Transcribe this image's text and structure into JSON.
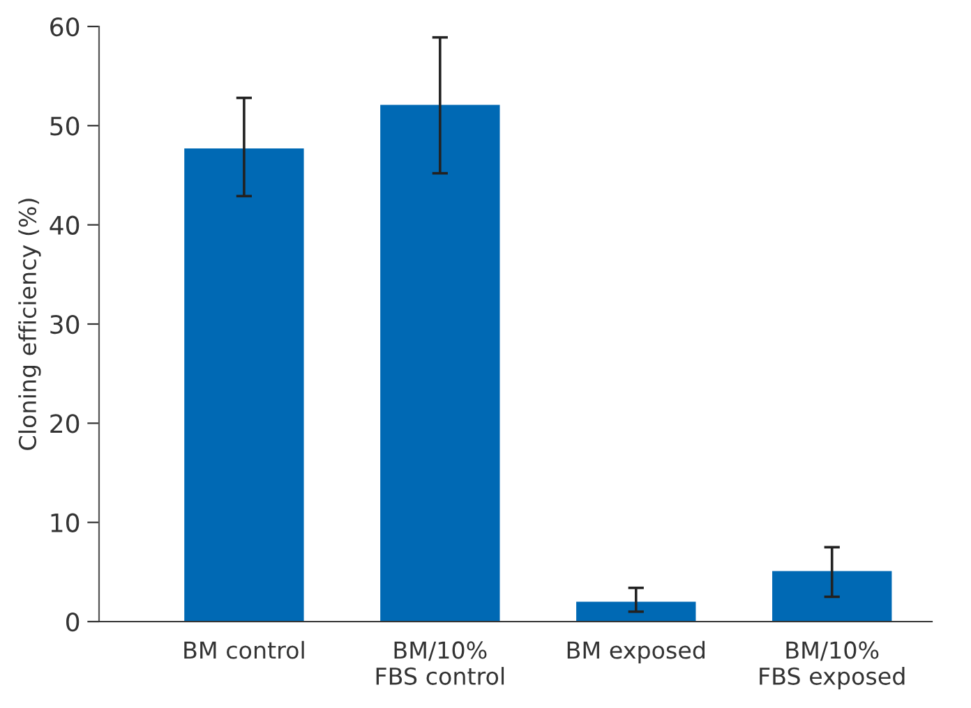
{
  "chart_data": {
    "type": "bar",
    "ylabel": "Cloning efficiency (%)",
    "categories": [
      "BM control",
      "BM/10%\nFBS control",
      "BM exposed",
      "BM/10%\nFBS exposed"
    ],
    "values": [
      47.7,
      52.1,
      2.0,
      5.1
    ],
    "errors": [
      [
        42.9,
        52.8
      ],
      [
        45.2,
        58.9
      ],
      [
        1.0,
        3.4
      ],
      [
        2.5,
        7.5
      ]
    ],
    "color": "#0069b4",
    "ylim": [
      0,
      60
    ],
    "yticks": [
      0,
      10,
      20,
      30,
      40,
      50,
      60
    ],
    "grid": false,
    "legend": false
  }
}
